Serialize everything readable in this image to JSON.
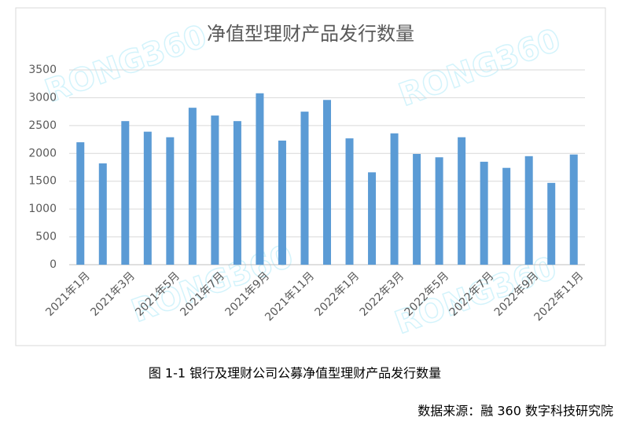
{
  "chart_data": {
    "type": "bar",
    "title": "净值型理财产品发行数量",
    "categories": [
      "2021年1月",
      null,
      "2021年3月",
      null,
      "2021年5月",
      null,
      "2021年7月",
      null,
      "2021年9月",
      null,
      "2021年11月",
      null,
      "2022年1月",
      null,
      "2022年3月",
      null,
      "2022年5月",
      null,
      "2022年7月",
      null,
      "2022年9月",
      null,
      "2022年11月"
    ],
    "values": [
      2200,
      1820,
      2580,
      2390,
      2290,
      2820,
      2680,
      2580,
      3080,
      2230,
      2750,
      2960,
      2270,
      1660,
      2360,
      1990,
      1930,
      2290,
      1850,
      1740,
      1950,
      1470,
      1980
    ],
    "color": "#5b9bd5",
    "ylim": [
      0,
      3500
    ],
    "yticks": [
      0,
      500,
      1000,
      1500,
      2000,
      2500,
      3000,
      3500
    ],
    "grid": true,
    "watermark": "RONG360"
  },
  "caption": "图 1-1 银行及理财公司公募净值型理财产品发行数量",
  "source": "数据来源：融 360 数字科技研究院"
}
